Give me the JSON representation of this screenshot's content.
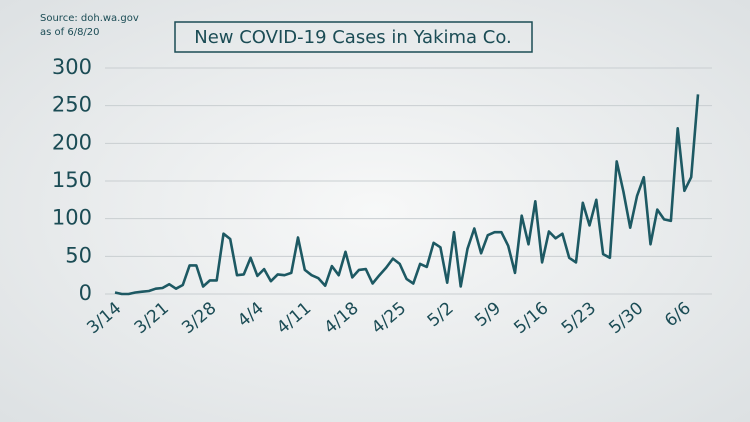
{
  "chart_data": {
    "type": "line",
    "title": "New COVID-19 Cases in Yakima Co.",
    "source": "Source: doh.wa.gov",
    "note": "as of 6/8/20",
    "categories": [
      "3/14",
      null,
      null,
      null,
      null,
      null,
      null,
      "3/21",
      null,
      null,
      null,
      null,
      null,
      null,
      "3/28",
      null,
      null,
      null,
      null,
      null,
      null,
      "4/4",
      null,
      null,
      null,
      null,
      null,
      null,
      "4/11",
      null,
      null,
      null,
      null,
      null,
      null,
      "4/18",
      null,
      null,
      null,
      null,
      null,
      null,
      "4/25",
      null,
      null,
      null,
      null,
      null,
      null,
      "5/2",
      null,
      null,
      null,
      null,
      null,
      null,
      "5/9",
      null,
      null,
      null,
      null,
      null,
      null,
      "5/16",
      null,
      null,
      null,
      null,
      null,
      null,
      "5/23",
      null,
      null,
      null,
      null,
      null,
      null,
      "5/30",
      null,
      null,
      null,
      null,
      null,
      null,
      "6/6",
      null,
      null
    ],
    "values": [
      2,
      0,
      0,
      2,
      3,
      4,
      7,
      8,
      13,
      7,
      12,
      38,
      38,
      10,
      18,
      18,
      80,
      73,
      25,
      26,
      48,
      24,
      33,
      17,
      26,
      25,
      28,
      75,
      32,
      25,
      21,
      11,
      37,
      25,
      56,
      22,
      32,
      33,
      14,
      25,
      35,
      47,
      40,
      20,
      14,
      40,
      36,
      68,
      62,
      15,
      82,
      10,
      60,
      87,
      54,
      78,
      82,
      82,
      64,
      28,
      104,
      66,
      123,
      42,
      83,
      74,
      80,
      48,
      42,
      121,
      91,
      125,
      53,
      48,
      176,
      136,
      88,
      130,
      155,
      66,
      112,
      99,
      97,
      220,
      137,
      155,
      265
    ],
    "color": "#1d5963",
    "ylim": [
      0,
      300
    ],
    "yticks": [
      0,
      50,
      100,
      150,
      200,
      250,
      300
    ],
    "grid": true
  }
}
